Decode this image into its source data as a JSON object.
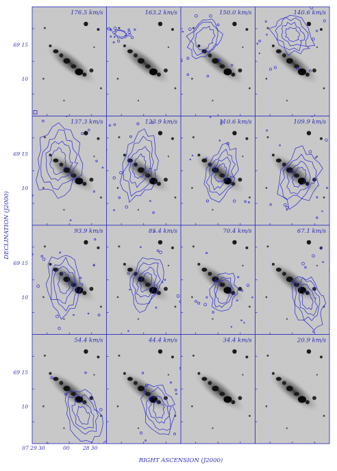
{
  "figure": {
    "ylabel": "DECLINATION (J2000)",
    "xlabel": "RIGHT ASCENSION (J2000)",
    "yticks": [
      "69 15",
      "10"
    ],
    "xticks": [
      "07 29 30",
      "00",
      "28 30"
    ],
    "colors": {
      "axes": "#3535c0",
      "contour": "#2f2fd0",
      "sky": "#c9c9c9"
    }
  },
  "channels": [
    {
      "velocity": "176.5 km/s",
      "contour_side": "none"
    },
    {
      "velocity": "163.2 km/s",
      "contour_side": "upper-left-small"
    },
    {
      "velocity": "150.0 km/s",
      "contour_side": "upper-left"
    },
    {
      "velocity": "140.6 km/s",
      "contour_side": "upper"
    },
    {
      "velocity": "137.3 km/s",
      "contour_side": "upper-left-large"
    },
    {
      "velocity": "123.9 km/s",
      "contour_side": "upper-mid"
    },
    {
      "velocity": "110.6 km/s",
      "contour_side": "center"
    },
    {
      "velocity": "109.9 km/s",
      "contour_side": "center-right"
    },
    {
      "velocity": "93.9 km/s",
      "contour_side": "center-left"
    },
    {
      "velocity": "85.4 km/s",
      "contour_side": "center"
    },
    {
      "velocity": "70.4 km/s",
      "contour_side": "center-low"
    },
    {
      "velocity": "67.1 km/s",
      "contour_side": "lower-right"
    },
    {
      "velocity": "54.4 km/s",
      "contour_side": "lower-right-large"
    },
    {
      "velocity": "44.4 km/s",
      "contour_side": "lower-right"
    },
    {
      "velocity": "34.4 km/s",
      "contour_side": "none"
    },
    {
      "velocity": "20.9 km/s",
      "contour_side": "none"
    }
  ]
}
